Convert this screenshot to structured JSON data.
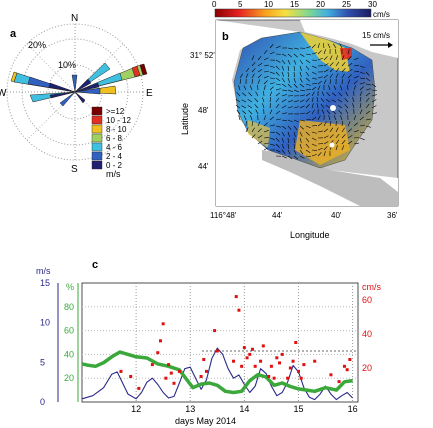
{
  "panel_a": {
    "letter": "a",
    "compass": {
      "n": "N",
      "e": "E",
      "s": "S",
      "w": "W"
    },
    "rings": [
      "10%",
      "20%"
    ],
    "legend_items": [
      ">=12",
      "10 - 12",
      "8 - 10",
      "6 - 8",
      "4 - 6",
      "2 - 4",
      "0 - 2"
    ],
    "legend_unit": "m/s",
    "colors": [
      "#7a0000",
      "#e03020",
      "#f0c020",
      "#a0d060",
      "#40c0e0",
      "#3060c0",
      "#202070"
    ]
  },
  "panel_b": {
    "letter": "b",
    "colorbar_ticks": [
      "0",
      "5",
      "10",
      "15",
      "20",
      "25",
      "30"
    ],
    "colorbar_unit": "cm/s",
    "scale_label": "15 cm/s",
    "ylabel": "Latitude",
    "xlabel": "Longitude",
    "y_ticks": [
      "31° 52'",
      "48'",
      "44'"
    ],
    "x_ticks": [
      "116°48'",
      "44'",
      "40'",
      "36'"
    ]
  },
  "chart_data": {
    "type": "line",
    "panel_letter": "c",
    "xlabel": "days May 2014",
    "xlim": [
      11,
      16.1
    ],
    "x_ticks": [
      "12",
      "13",
      "14",
      "15",
      "16"
    ],
    "axes": {
      "wind": {
        "unit": "m/s",
        "ticks": [
          "0",
          "5",
          "10",
          "15"
        ],
        "ylim": [
          0,
          15
        ],
        "color": "#2a2a8a"
      },
      "percent": {
        "unit": "%",
        "ticks": [
          "20",
          "40",
          "60",
          "80"
        ],
        "ylim": [
          0,
          100
        ],
        "color": "#3aa83a"
      },
      "current": {
        "unit": "cm/s",
        "ticks": [
          "20",
          "40",
          "60"
        ],
        "ylim": [
          0,
          70
        ],
        "color": "#e01010"
      }
    },
    "series": [
      {
        "axis": "wind",
        "color": "#2a2a8a",
        "x": [
          11.0,
          11.2,
          11.4,
          11.55,
          11.65,
          11.75,
          11.85,
          12.0,
          12.1,
          12.2,
          12.3,
          12.4,
          12.5,
          12.6,
          12.7,
          12.8,
          12.9,
          13.0,
          13.1,
          13.2,
          13.3,
          13.4,
          13.5,
          13.6,
          13.7,
          13.8,
          13.9,
          14.0,
          14.1,
          14.2,
          14.3,
          14.4,
          14.5,
          14.6,
          14.7,
          14.8,
          14.9,
          15.0,
          15.1,
          15.2,
          15.3,
          15.4,
          15.5,
          15.6,
          15.7,
          15.8,
          15.9,
          16.0
        ],
        "values": [
          0.4,
          0.8,
          1.8,
          3.5,
          3.8,
          2.4,
          1.0,
          0.4,
          1.2,
          2.5,
          3.0,
          2.2,
          1.2,
          0.5,
          0.7,
          2.4,
          4.2,
          4.4,
          3.0,
          1.6,
          2.8,
          5.5,
          6.8,
          6.0,
          4.2,
          3.0,
          3.4,
          2.2,
          1.2,
          2.0,
          4.2,
          3.6,
          2.0,
          0.8,
          1.2,
          2.5,
          4.6,
          3.8,
          1.8,
          0.6,
          0.3,
          1.0,
          2.0,
          1.0,
          0.3,
          0.8,
          1.2,
          0.5
        ]
      },
      {
        "axis": "percent",
        "color": "#3aa83a",
        "x": [
          11.0,
          11.1,
          11.25,
          11.4,
          11.55,
          11.7,
          11.85,
          12.0,
          12.2,
          12.4,
          12.6,
          12.8,
          12.95,
          13.05,
          13.2,
          13.35,
          13.5,
          13.65,
          13.8,
          13.95,
          14.1,
          14.25,
          14.4,
          14.55,
          14.7,
          14.85,
          15.0,
          15.15,
          15.3,
          15.5,
          15.7,
          15.85,
          16.0
        ],
        "values": [
          32,
          31,
          30,
          33,
          38,
          42,
          40,
          38,
          37,
          32,
          30,
          27,
          18,
          12,
          15,
          16,
          14,
          9,
          8,
          9,
          18,
          23,
          21,
          14,
          16,
          13,
          11,
          10,
          9,
          12,
          10,
          17,
          18
        ]
      }
    ],
    "scatter": {
      "axis": "current",
      "color": "#e01010",
      "x": [
        11.72,
        11.9,
        12.05,
        12.3,
        12.4,
        12.45,
        12.5,
        12.55,
        12.6,
        12.65,
        12.7,
        12.8,
        13.2,
        13.25,
        13.3,
        13.45,
        13.5,
        13.8,
        13.85,
        13.9,
        13.95,
        14.0,
        14.05,
        14.1,
        14.15,
        14.2,
        14.3,
        14.35,
        14.45,
        14.5,
        14.55,
        14.6,
        14.65,
        14.7,
        14.8,
        14.85,
        14.9,
        14.95,
        15.0,
        15.05,
        15.1,
        15.3,
        15.6,
        15.75,
        15.85,
        15.9,
        15.95
      ],
      "values": [
        18,
        15,
        8,
        22,
        29,
        36,
        46,
        14,
        22,
        17,
        11,
        18,
        15,
        25,
        18,
        42,
        30,
        24,
        62,
        54,
        21,
        32,
        26,
        28,
        31,
        21,
        24,
        33,
        15,
        21,
        14,
        26,
        23,
        28,
        14,
        20,
        24,
        35,
        18,
        14,
        22,
        24,
        16,
        12,
        21,
        19,
        25
      ]
    },
    "dashed_line": {
      "axis": "current",
      "value": 30
    }
  }
}
